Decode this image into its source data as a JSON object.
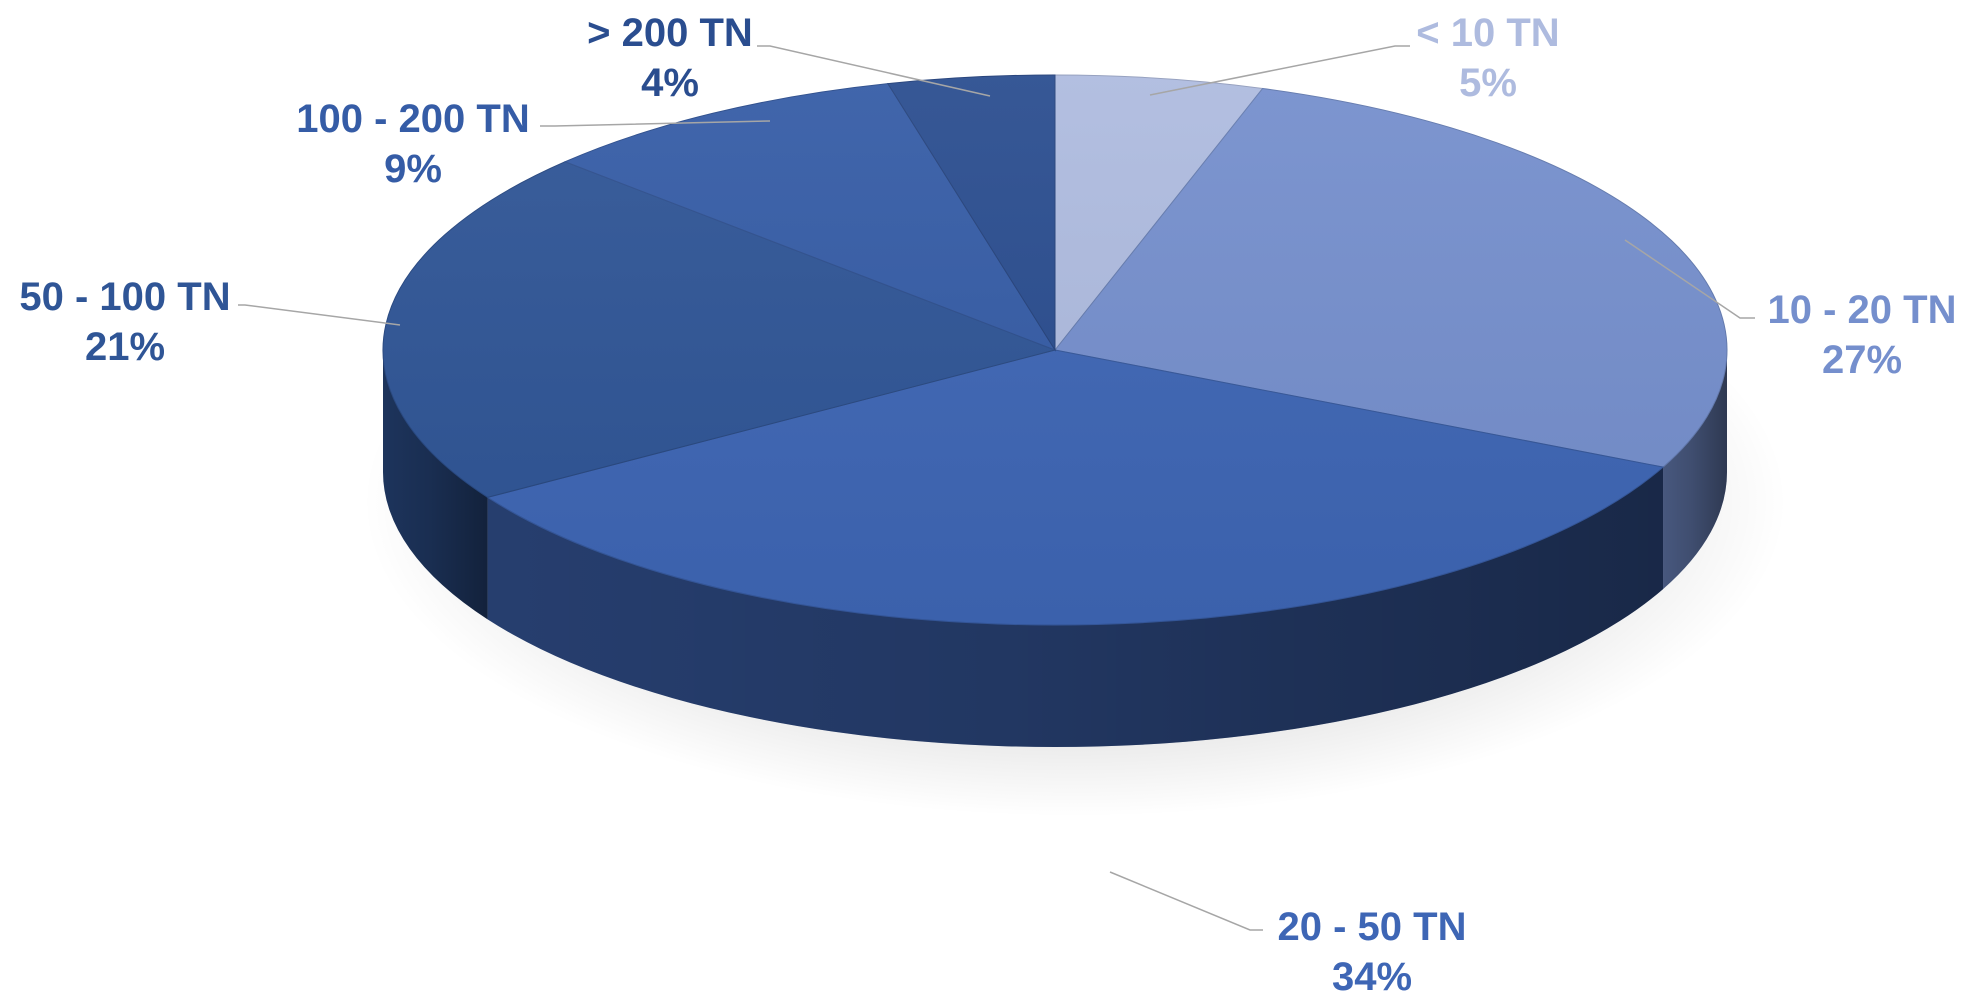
{
  "chart_data": {
    "type": "pie",
    "title": "",
    "three_d": true,
    "start_angle_deg": 90,
    "direction": "clockwise",
    "slices": [
      {
        "label": "< 10 TN",
        "value": 5,
        "percent_label": "5%",
        "color": "#AEBBDF"
      },
      {
        "label": "10 - 20 TN",
        "value": 27,
        "percent_label": "27%",
        "color": "#758FCD"
      },
      {
        "label": "20 - 50 TN",
        "value": 34,
        "percent_label": "34%",
        "color": "#3E66B5"
      },
      {
        "label": "50 - 100 TN",
        "value": 21,
        "percent_label": "21%",
        "color": "#2F5596"
      },
      {
        "label": "100 - 200 TN",
        "value": 9,
        "percent_label": "9%",
        "color": "#355CA6"
      },
      {
        "label": "> 200 TN",
        "value": 4,
        "percent_label": "4%",
        "color": "#2A4D8F"
      }
    ],
    "leader_line_color": "#A6A6A6"
  }
}
